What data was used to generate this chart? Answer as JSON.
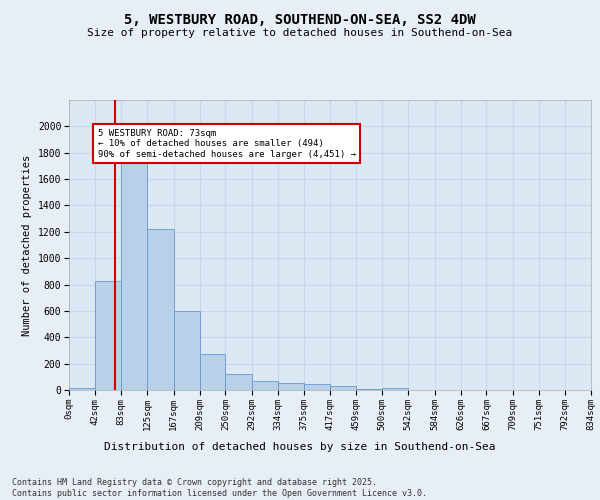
{
  "title_line1": "5, WESTBURY ROAD, SOUTHEND-ON-SEA, SS2 4DW",
  "title_line2": "Size of property relative to detached houses in Southend-on-Sea",
  "xlabel": "Distribution of detached houses by size in Southend-on-Sea",
  "ylabel": "Number of detached properties",
  "bin_edges": [
    0,
    42,
    83,
    125,
    167,
    209,
    250,
    292,
    334,
    375,
    417,
    459,
    500,
    542,
    584,
    626,
    667,
    709,
    751,
    792,
    834
  ],
  "bin_labels": [
    "0sqm",
    "42sqm",
    "83sqm",
    "125sqm",
    "167sqm",
    "209sqm",
    "250sqm",
    "292sqm",
    "334sqm",
    "375sqm",
    "417sqm",
    "459sqm",
    "500sqm",
    "542sqm",
    "584sqm",
    "626sqm",
    "667sqm",
    "709sqm",
    "751sqm",
    "792sqm",
    "834sqm"
  ],
  "bar_heights": [
    15,
    830,
    1870,
    1220,
    600,
    270,
    120,
    65,
    55,
    45,
    30,
    5,
    15,
    0,
    0,
    0,
    0,
    0,
    0,
    0
  ],
  "bar_color": "#b8d0e8",
  "bar_edge_color": "#6699cc",
  "vline_x": 73,
  "vline_color": "#cc0000",
  "ylim": [
    0,
    2200
  ],
  "yticks": [
    0,
    200,
    400,
    600,
    800,
    1000,
    1200,
    1400,
    1600,
    1800,
    2000
  ],
  "annotation_title": "5 WESTBURY ROAD: 73sqm",
  "annotation_line1": "← 10% of detached houses are smaller (494)",
  "annotation_line2": "90% of semi-detached houses are larger (4,451) →",
  "annotation_box_color": "#cc0000",
  "footer_line1": "Contains HM Land Registry data © Crown copyright and database right 2025.",
  "footer_line2": "Contains public sector information licensed under the Open Government Licence v3.0.",
  "bg_color": "#e8eef5",
  "plot_bg_color": "#dce8f4",
  "grid_color": "#c8d8e8"
}
